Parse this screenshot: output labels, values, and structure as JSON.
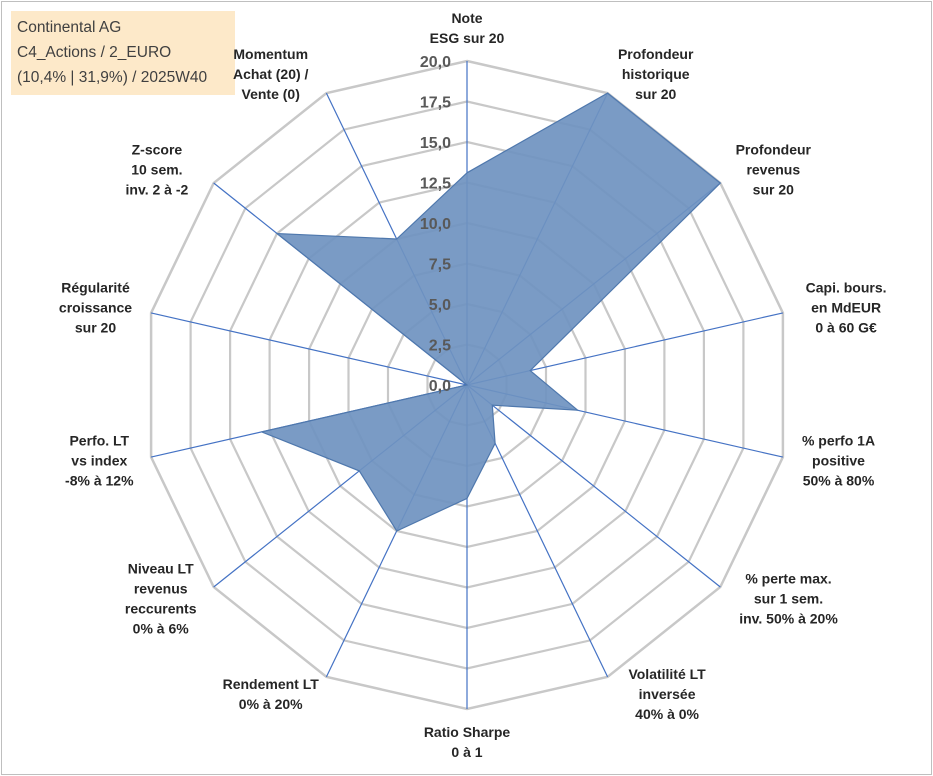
{
  "info": {
    "line1": "Continental AG",
    "line2": "C4_Actions / 2_EURO",
    "line3": "(10,4% | 31,9%) / 2025W40"
  },
  "chart_data": {
    "type": "radar",
    "rmin": 0,
    "rmax": 20,
    "ticks": [
      "0,0",
      "2,5",
      "5,0",
      "7,5",
      "10,0",
      "12,5",
      "15,0",
      "17,5",
      "20,0"
    ],
    "grid": true,
    "colors": {
      "fill": "#6f93c0",
      "stroke": "#4f78ad",
      "grid": "#c8c8c8",
      "spoke": "#4472c4"
    },
    "axes": [
      {
        "label": [
          "Note",
          "ESG sur 20"
        ],
        "value": 13.1
      },
      {
        "label": [
          "Profondeur",
          "historique",
          "sur 20"
        ],
        "value": 20.0
      },
      {
        "label": [
          "Profondeur",
          "revenus",
          "sur 20"
        ],
        "value": 20.0
      },
      {
        "label": [
          "Capi. bours.",
          "en MdEUR",
          "0 à 60 G€"
        ],
        "value": 4.0
      },
      {
        "label": [
          "% perfo 1A",
          "positive",
          "50% à 80%"
        ],
        "value": 7.0
      },
      {
        "label": [
          "% perte max.",
          "sur 1 sem.",
          "inv. 50% à 20%"
        ],
        "value": 2.0
      },
      {
        "label": [
          "Volatilité LT",
          "inversée",
          "40% à 0%"
        ],
        "value": 4.0
      },
      {
        "label": [
          "Ratio Sharpe",
          "0 à 1"
        ],
        "value": 7.0
      },
      {
        "label": [
          "Rendement LT",
          "0% à 20%"
        ],
        "value": 10.0
      },
      {
        "label": [
          "Niveau LT",
          "revenus",
          "reccurents",
          "0% à 6%"
        ],
        "value": 8.5
      },
      {
        "label": [
          "Perfo. LT",
          "vs index",
          "-8% à 12%"
        ],
        "value": 13.0
      },
      {
        "label": [
          "Régularité",
          "croissance",
          "sur 20"
        ],
        "value": 0.0
      },
      {
        "label": [
          "Z-score",
          "10 sem.",
          "inv. 2 à -2"
        ],
        "value": 15.0
      },
      {
        "label": [
          "Momentum",
          "Achat (20) /",
          "Vente (0)"
        ],
        "value": 10.0
      }
    ]
  }
}
